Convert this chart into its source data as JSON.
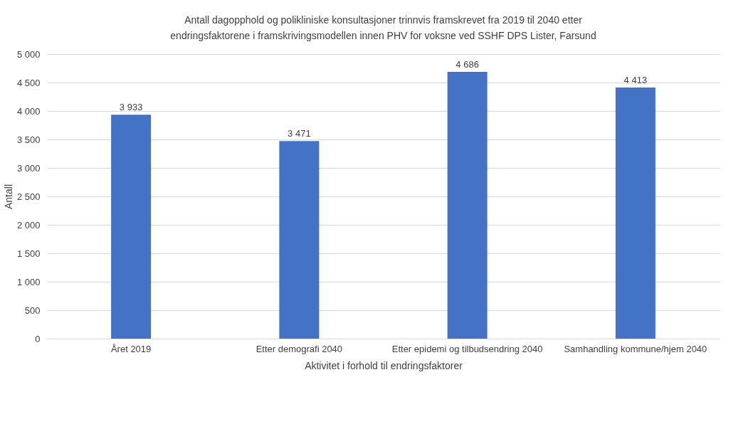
{
  "chart_data": {
    "type": "bar",
    "title": "Antall dagopphold og polikliniske konsultasjoner trinnvis framskrevet fra 2019 til 2040 etter endringsfaktorene i framskrivingsmodellen innen PHV for voksne ved SSHF DPS Lister, Farsund",
    "xlabel": "Aktivitet i forhold til endringsfaktorer",
    "ylabel": "Antall",
    "categories": [
      "Året 2019",
      "Etter demografi 2040",
      "Etter epidemi og tilbudsendring 2040",
      "Samhandling kommune/hjem 2040"
    ],
    "values": [
      3933,
      3471,
      4686,
      4413
    ],
    "value_labels": [
      "3 933",
      "3 471",
      "4 686",
      "4 413"
    ],
    "color": "#4472c4",
    "ylim": [
      0,
      5000
    ],
    "yticks": [
      {
        "value": 0,
        "label": "0"
      },
      {
        "value": 500,
        "label": "500"
      },
      {
        "value": 1000,
        "label": "1 000"
      },
      {
        "value": 1500,
        "label": "1 500"
      },
      {
        "value": 2000,
        "label": "2 000"
      },
      {
        "value": 2500,
        "label": "2 500"
      },
      {
        "value": 3000,
        "label": "3 000"
      },
      {
        "value": 3500,
        "label": "3 500"
      },
      {
        "value": 4000,
        "label": "4 000"
      },
      {
        "value": 4500,
        "label": "4 500"
      },
      {
        "value": 5000,
        "label": "5 000"
      }
    ],
    "grid": "y"
  }
}
